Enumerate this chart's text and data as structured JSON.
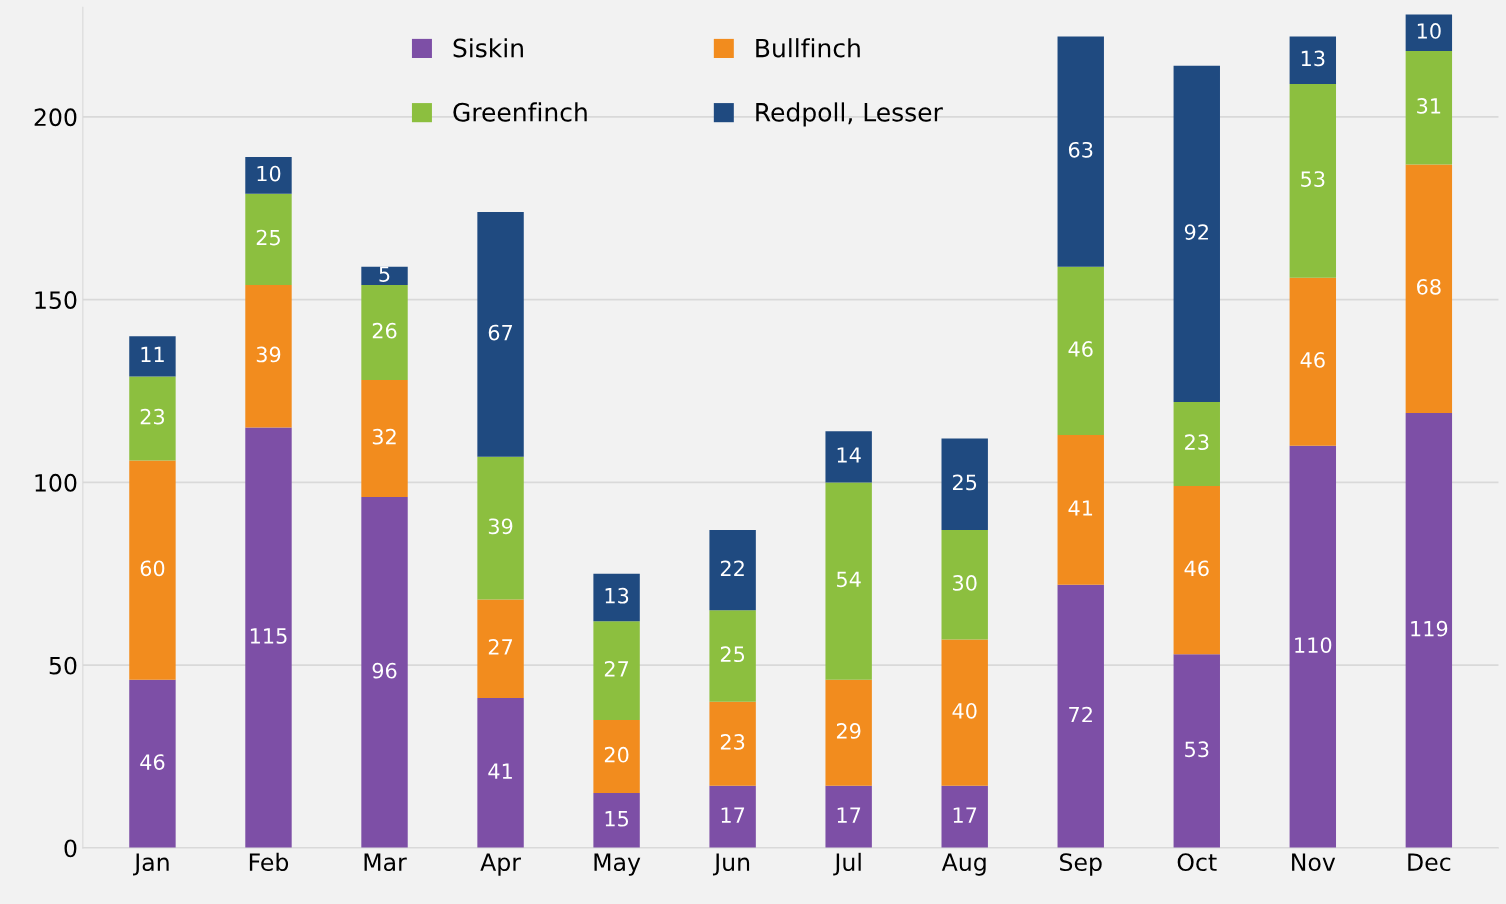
{
  "chart_data": {
    "type": "bar",
    "stacked": true,
    "categories": [
      "Jan",
      "Feb",
      "Mar",
      "Apr",
      "May",
      "Jun",
      "Jul",
      "Aug",
      "Sep",
      "Oct",
      "Nov",
      "Dec"
    ],
    "series": [
      {
        "name": "Siskin",
        "color": "#7d4fa6",
        "values": [
          46,
          115,
          96,
          41,
          15,
          17,
          17,
          17,
          72,
          53,
          110,
          119
        ]
      },
      {
        "name": "Bullfinch",
        "color": "#f28c1e",
        "values": [
          60,
          39,
          32,
          27,
          20,
          23,
          29,
          40,
          41,
          46,
          46,
          68
        ]
      },
      {
        "name": "Greenfinch",
        "color": "#8cbf3f",
        "values": [
          23,
          25,
          26,
          39,
          27,
          25,
          54,
          30,
          46,
          23,
          53,
          31
        ]
      },
      {
        "name": "Redpoll, Lesser",
        "color": "#1f4a80",
        "values": [
          11,
          10,
          5,
          67,
          13,
          22,
          14,
          25,
          63,
          92,
          13,
          10
        ]
      }
    ],
    "ylim": [
      0,
      230
    ],
    "yticks": [
      0,
      50,
      100,
      150,
      200
    ],
    "grid": "y",
    "legend": "top",
    "data_labels": true
  }
}
